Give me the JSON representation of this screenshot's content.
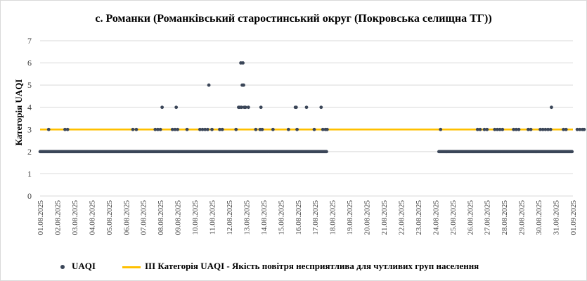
{
  "chart_data": {
    "type": "scatter",
    "title": "с. Романки (Романківський старостинський округ (Покровська селищна ТГ))",
    "xlabel": "",
    "ylabel": "Категорія UAQI",
    "ylim": [
      0,
      7
    ],
    "yticks": [
      "0",
      "1",
      "2",
      "3",
      "4",
      "5",
      "6",
      "7"
    ],
    "xticks": [
      "01.08.2025",
      "02.08.2025",
      "03.08.2025",
      "04.08.2025",
      "05.08.2025",
      "06.08.2025",
      "07.08.2025",
      "08.08.2025",
      "09.08.2025",
      "10.08.2025",
      "11.08.2025",
      "12.08.2025",
      "13.08.2025",
      "14.08.2025",
      "15.08.2025",
      "16.08.2025",
      "17.08.2025",
      "18.08.2025",
      "19.08.2025",
      "20.08.2025",
      "21.08.2025",
      "22.08.2025",
      "23.08.2025",
      "24.08.2025",
      "25.08.2025",
      "26.08.2025",
      "27.08.2025",
      "28.08.2025",
      "29.08.2025",
      "30.08.2025",
      "31.08.2025",
      "01.09.2025"
    ],
    "grid": "horizontal",
    "legend_position": "bottom",
    "series": [
      {
        "name": "UAQI",
        "kind": "points",
        "color": "#3b4658",
        "base_value": 2,
        "base_coverage_days": [
          [
            0.0,
            16.7
          ],
          [
            23.2,
            30.95
          ]
        ],
        "points": [
          {
            "x": 0.5,
            "y": 3
          },
          {
            "x": 1.45,
            "y": 3
          },
          {
            "x": 1.6,
            "y": 3
          },
          {
            "x": 5.4,
            "y": 3
          },
          {
            "x": 5.6,
            "y": 3
          },
          {
            "x": 6.7,
            "y": 3
          },
          {
            "x": 6.85,
            "y": 3
          },
          {
            "x": 7.0,
            "y": 3
          },
          {
            "x": 7.1,
            "y": 4
          },
          {
            "x": 7.7,
            "y": 3
          },
          {
            "x": 7.85,
            "y": 3
          },
          {
            "x": 7.92,
            "y": 4
          },
          {
            "x": 8.0,
            "y": 3
          },
          {
            "x": 8.55,
            "y": 3
          },
          {
            "x": 9.3,
            "y": 3
          },
          {
            "x": 9.45,
            "y": 3
          },
          {
            "x": 9.6,
            "y": 3
          },
          {
            "x": 9.75,
            "y": 3
          },
          {
            "x": 9.82,
            "y": 5
          },
          {
            "x": 10.0,
            "y": 3
          },
          {
            "x": 10.45,
            "y": 3
          },
          {
            "x": 10.6,
            "y": 3
          },
          {
            "x": 11.4,
            "y": 3
          },
          {
            "x": 11.55,
            "y": 4
          },
          {
            "x": 11.62,
            "y": 4
          },
          {
            "x": 11.68,
            "y": 6
          },
          {
            "x": 11.72,
            "y": 4
          },
          {
            "x": 11.76,
            "y": 5
          },
          {
            "x": 11.8,
            "y": 6
          },
          {
            "x": 11.84,
            "y": 5
          },
          {
            "x": 11.88,
            "y": 4
          },
          {
            "x": 11.95,
            "y": 4
          },
          {
            "x": 12.12,
            "y": 4
          },
          {
            "x": 12.55,
            "y": 3
          },
          {
            "x": 12.8,
            "y": 3
          },
          {
            "x": 12.85,
            "y": 4
          },
          {
            "x": 12.92,
            "y": 3
          },
          {
            "x": 13.55,
            "y": 3
          },
          {
            "x": 14.45,
            "y": 3
          },
          {
            "x": 14.85,
            "y": 4
          },
          {
            "x": 14.9,
            "y": 4
          },
          {
            "x": 14.95,
            "y": 3
          },
          {
            "x": 15.5,
            "y": 4
          },
          {
            "x": 15.95,
            "y": 3
          },
          {
            "x": 16.35,
            "y": 4
          },
          {
            "x": 16.45,
            "y": 3
          },
          {
            "x": 16.6,
            "y": 3
          },
          {
            "x": 16.7,
            "y": 3
          },
          {
            "x": 23.3,
            "y": 3
          },
          {
            "x": 25.45,
            "y": 3
          },
          {
            "x": 25.6,
            "y": 3
          },
          {
            "x": 25.85,
            "y": 3
          },
          {
            "x": 26.0,
            "y": 3
          },
          {
            "x": 26.45,
            "y": 3
          },
          {
            "x": 26.6,
            "y": 3
          },
          {
            "x": 26.75,
            "y": 3
          },
          {
            "x": 26.9,
            "y": 3
          },
          {
            "x": 27.55,
            "y": 3
          },
          {
            "x": 27.7,
            "y": 3
          },
          {
            "x": 27.85,
            "y": 3
          },
          {
            "x": 28.4,
            "y": 3
          },
          {
            "x": 28.55,
            "y": 3
          },
          {
            "x": 29.1,
            "y": 3
          },
          {
            "x": 29.25,
            "y": 3
          },
          {
            "x": 29.4,
            "y": 3
          },
          {
            "x": 29.55,
            "y": 3
          },
          {
            "x": 29.7,
            "y": 3
          },
          {
            "x": 29.75,
            "y": 4
          },
          {
            "x": 30.45,
            "y": 3
          },
          {
            "x": 30.6,
            "y": 3
          },
          {
            "x": 31.25,
            "y": 3
          },
          {
            "x": 31.4,
            "y": 3
          },
          {
            "x": 31.55,
            "y": 3
          },
          {
            "x": 31.65,
            "y": 3
          }
        ]
      },
      {
        "name": "III Категорія UAQI - Якість повітря несприятлива для чутливих груп населення",
        "kind": "reference-line",
        "color": "#ffc000",
        "value": 3
      }
    ]
  }
}
